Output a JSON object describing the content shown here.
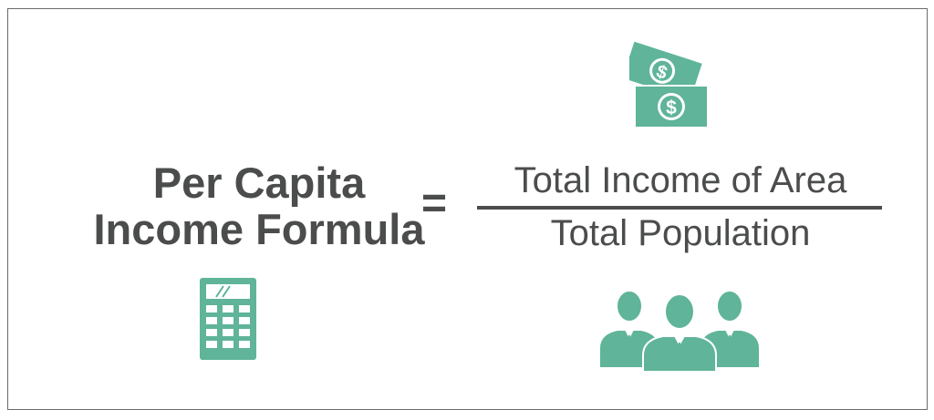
{
  "formula": {
    "lhs_line1": "Per Capita",
    "lhs_line2": "Income Formula",
    "equals": "=",
    "numerator": "Total Income of Area",
    "denominator": "Total Population"
  },
  "icons": {
    "money": "money-bills-icon",
    "calculator": "calculator-icon",
    "people": "people-group-icon"
  },
  "colors": {
    "accent": "#5fb499",
    "text": "#4b4d4c",
    "border": "#6b6b6b"
  }
}
